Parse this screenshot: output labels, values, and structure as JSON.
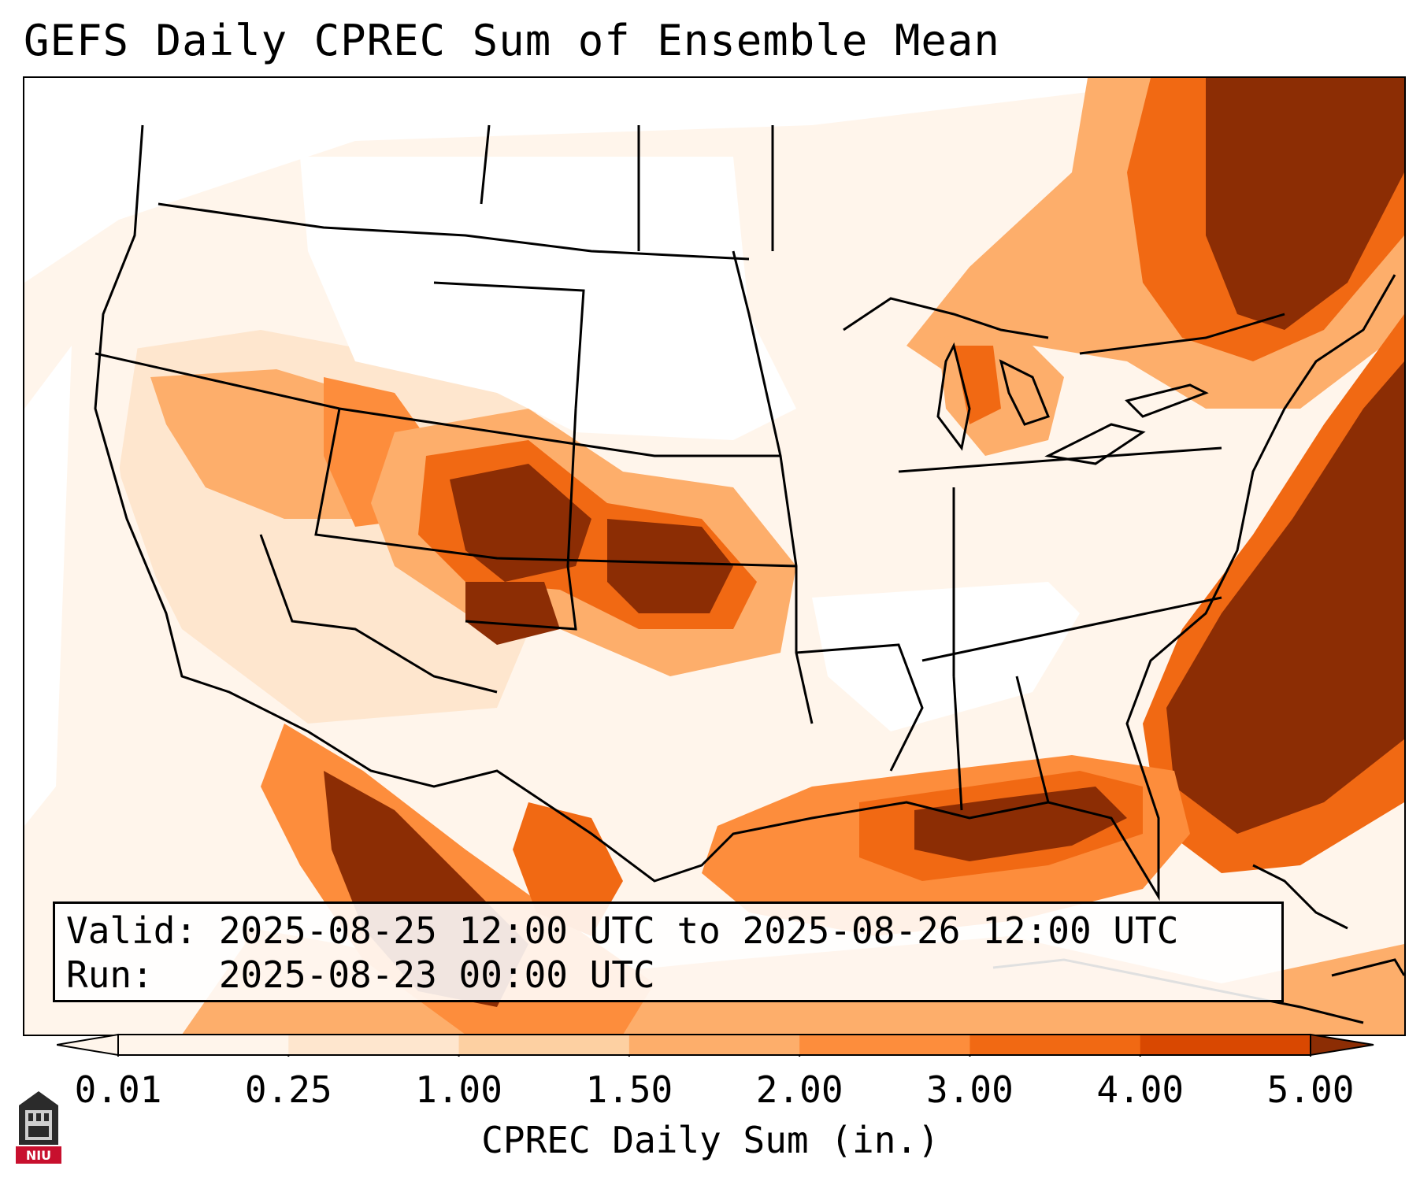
{
  "title": "GEFS Daily CPREC Sum of Ensemble Mean",
  "info": {
    "valid_line": "Valid: 2025-08-25 12:00 UTC to 2025-08-26 12:00 UTC",
    "run_line": "Run:   2025-08-23 00:00 UTC"
  },
  "colorbar": {
    "label": "CPREC Daily Sum (in.)",
    "ticks": [
      "0.01",
      "0.25",
      "1.00",
      "1.50",
      "2.00",
      "3.00",
      "4.00",
      "5.00"
    ],
    "colors": [
      "#fff5eb",
      "#fee6ce",
      "#fdd0a2",
      "#fdae6b",
      "#fd8d3c",
      "#f16913",
      "#d94801",
      "#8c2d04"
    ]
  },
  "logo_text": "NIU",
  "colors": {
    "light": "#fff5eb",
    "pale": "#fee6ce",
    "tan": "#fdd0a2",
    "orange_light": "#fdae6b",
    "orange": "#fd8d3c",
    "orange_dark": "#f16913",
    "rust": "#d94801",
    "brown": "#8c2d04"
  }
}
